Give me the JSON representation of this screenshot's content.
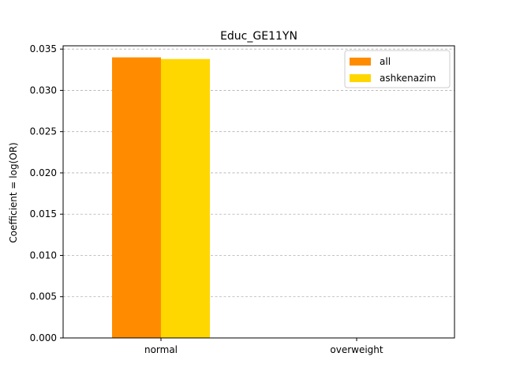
{
  "chart_data": {
    "type": "bar",
    "title": "Educ_GE11YN",
    "xlabel": "",
    "ylabel": "Coefficient = log(OR)",
    "categories": [
      "normal",
      "overweight"
    ],
    "series": [
      {
        "name": "all",
        "values": [
          0.034,
          0
        ],
        "color": "#FF8C00"
      },
      {
        "name": "ashkenazim",
        "values": [
          0.0338,
          0
        ],
        "color": "#FFD700"
      }
    ],
    "ylim": [
      0,
      0.0354
    ],
    "yticks": [
      "0.000",
      "0.005",
      "0.010",
      "0.015",
      "0.020",
      "0.025",
      "0.030",
      "0.035"
    ],
    "grid": "y-dashed",
    "legend_position": "top-right"
  }
}
